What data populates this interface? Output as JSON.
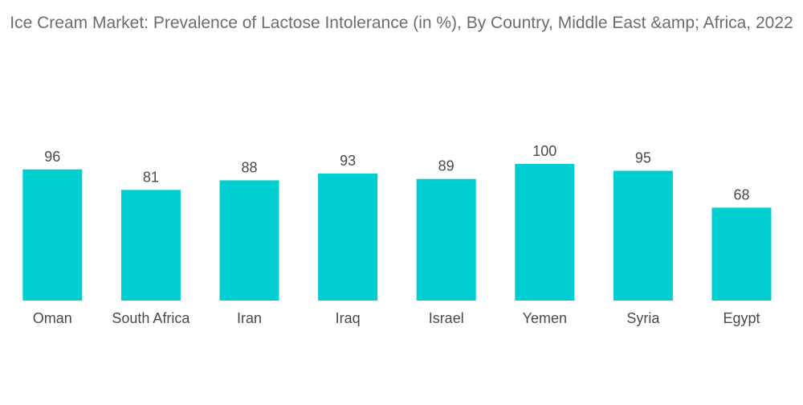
{
  "chart_data": {
    "type": "bar",
    "title": "Ice Cream Market: Prevalence of Lactose Intolerance (in %), By Country, Middle East &amp; Africa, 2022",
    "categories": [
      "Oman",
      "South Africa",
      "Iran",
      "Iraq",
      "Israel",
      "Yemen",
      "Syria",
      "Egypt"
    ],
    "values": [
      96,
      81,
      88,
      93,
      89,
      100,
      95,
      68
    ],
    "data_labels": [
      "96",
      "81",
      "88",
      "93",
      "89",
      "100",
      "95",
      "68"
    ],
    "xlabel": "",
    "ylabel": "",
    "ylim": [
      0,
      100
    ],
    "grid": false,
    "legend": "none",
    "bar_color": "#00CED1"
  }
}
